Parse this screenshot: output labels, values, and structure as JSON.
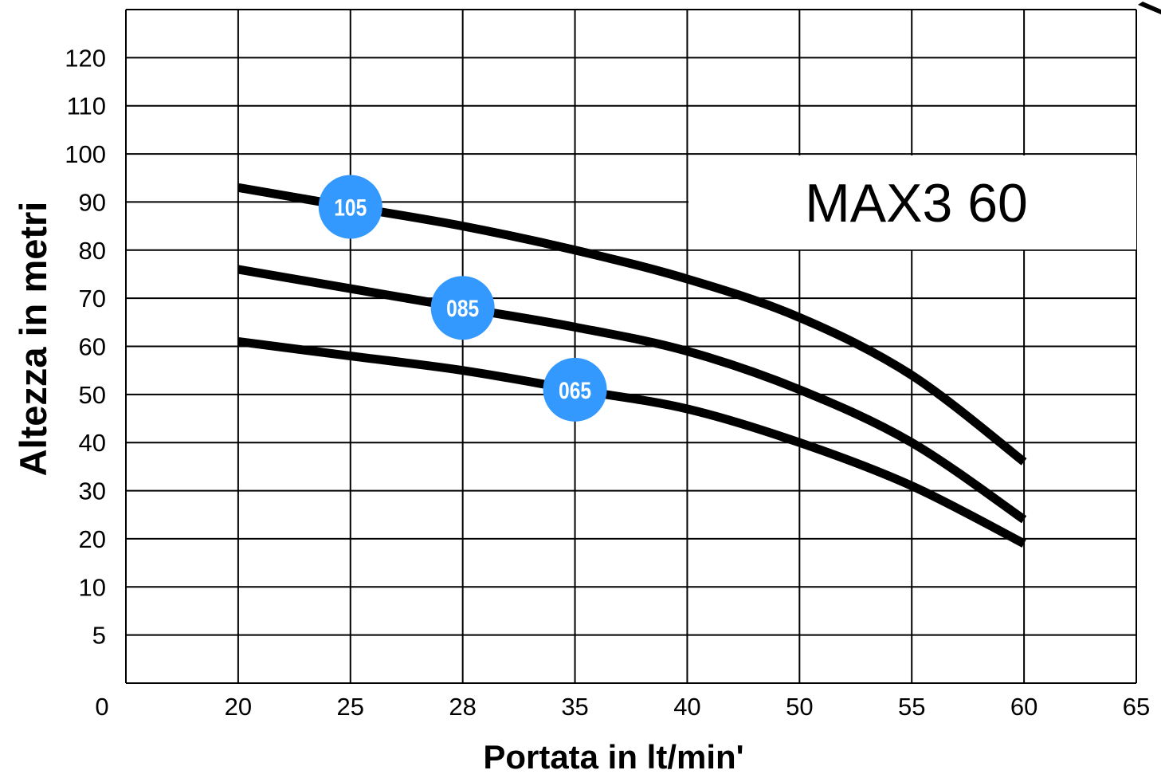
{
  "chart_data": {
    "type": "line",
    "title": "MAX3 60",
    "xlabel": "Portata in lt/min'",
    "ylabel": "Altezza in metri",
    "x_ticks": [
      "0",
      "20",
      "25",
      "28",
      "35",
      "40",
      "50",
      "55",
      "60",
      "65"
    ],
    "y_ticks": [
      "0",
      "5",
      "10",
      "20",
      "30",
      "40",
      "50",
      "60",
      "70",
      "80",
      "90",
      "100",
      "110",
      "120"
    ],
    "grid": true,
    "series": [
      {
        "name": "105",
        "color": "#000000",
        "badge_color": "#3399ff",
        "x": [
          "20",
          "25",
          "28",
          "35",
          "40",
          "50",
          "55",
          "60"
        ],
        "y": [
          93,
          89,
          85,
          80,
          74,
          66,
          54,
          36
        ]
      },
      {
        "name": "085",
        "color": "#000000",
        "badge_color": "#3399ff",
        "x": [
          "20",
          "25",
          "28",
          "35",
          "40",
          "50",
          "55",
          "60"
        ],
        "y": [
          76,
          72,
          68,
          64,
          59,
          51,
          40,
          24
        ]
      },
      {
        "name": "065",
        "color": "#000000",
        "badge_color": "#3399ff",
        "x": [
          "20",
          "25",
          "28",
          "35",
          "40",
          "50",
          "55",
          "60"
        ],
        "y": [
          61,
          58,
          55,
          51,
          47,
          40,
          31,
          19
        ]
      }
    ]
  }
}
